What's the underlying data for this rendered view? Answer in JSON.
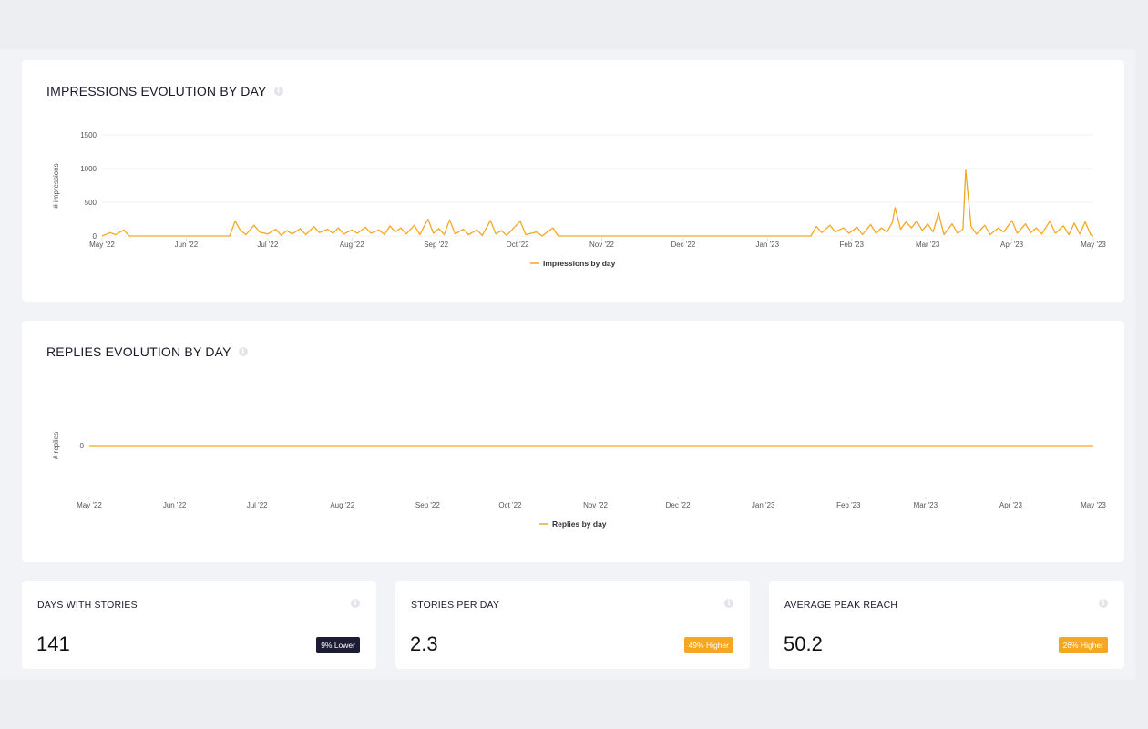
{
  "impressions_card": {
    "title": "IMPRESSIONS EVOLUTION BY DAY",
    "info_icon": "info-icon",
    "chart_data": {
      "type": "line",
      "ylabel": "# impressions",
      "ylim": [
        0,
        1500
      ],
      "yticks": [
        0,
        500,
        1000,
        1500
      ],
      "xlim": [
        "2022-05-01",
        "2023-05-01"
      ],
      "xticks": [
        {
          "date": "2022-05-01",
          "label": "May '22"
        },
        {
          "date": "2022-06-01",
          "label": "Jun '22"
        },
        {
          "date": "2022-07-01",
          "label": "Jul '22"
        },
        {
          "date": "2022-08-01",
          "label": "Aug '22"
        },
        {
          "date": "2022-09-01",
          "label": "Sep '22"
        },
        {
          "date": "2022-10-01",
          "label": "Oct '22"
        },
        {
          "date": "2022-11-01",
          "label": "Nov '22"
        },
        {
          "date": "2022-12-01",
          "label": "Dec '22"
        },
        {
          "date": "2023-01-01",
          "label": "Jan '23"
        },
        {
          "date": "2023-02-01",
          "label": "Feb '23"
        },
        {
          "date": "2023-03-01",
          "label": "Mar '23"
        },
        {
          "date": "2023-04-01",
          "label": "Apr '23"
        },
        {
          "date": "2023-05-01",
          "label": "May '23"
        }
      ],
      "legend_position": "bottom-center",
      "color": "#f5a623",
      "series": [
        {
          "name": "Impressions by day",
          "points": [
            [
              "2022-05-01",
              0
            ],
            [
              "2022-05-04",
              50
            ],
            [
              "2022-05-06",
              20
            ],
            [
              "2022-05-09",
              90
            ],
            [
              "2022-05-11",
              0
            ],
            [
              "2022-06-17",
              0
            ],
            [
              "2022-06-19",
              220
            ],
            [
              "2022-06-21",
              80
            ],
            [
              "2022-06-23",
              20
            ],
            [
              "2022-06-26",
              160
            ],
            [
              "2022-06-28",
              60
            ],
            [
              "2022-07-01",
              30
            ],
            [
              "2022-07-04",
              100
            ],
            [
              "2022-07-06",
              10
            ],
            [
              "2022-07-08",
              80
            ],
            [
              "2022-07-10",
              30
            ],
            [
              "2022-07-13",
              110
            ],
            [
              "2022-07-15",
              20
            ],
            [
              "2022-07-18",
              140
            ],
            [
              "2022-07-20",
              50
            ],
            [
              "2022-07-23",
              100
            ],
            [
              "2022-07-25",
              40
            ],
            [
              "2022-07-27",
              120
            ],
            [
              "2022-07-29",
              30
            ],
            [
              "2022-08-01",
              90
            ],
            [
              "2022-08-03",
              40
            ],
            [
              "2022-08-06",
              130
            ],
            [
              "2022-08-08",
              40
            ],
            [
              "2022-08-11",
              90
            ],
            [
              "2022-08-13",
              20
            ],
            [
              "2022-08-15",
              150
            ],
            [
              "2022-08-17",
              60
            ],
            [
              "2022-08-19",
              120
            ],
            [
              "2022-08-21",
              30
            ],
            [
              "2022-08-24",
              160
            ],
            [
              "2022-08-26",
              20
            ],
            [
              "2022-08-29",
              250
            ],
            [
              "2022-08-31",
              40
            ],
            [
              "2022-09-02",
              110
            ],
            [
              "2022-09-04",
              20
            ],
            [
              "2022-09-06",
              240
            ],
            [
              "2022-09-08",
              30
            ],
            [
              "2022-09-11",
              100
            ],
            [
              "2022-09-13",
              20
            ],
            [
              "2022-09-16",
              90
            ],
            [
              "2022-09-18",
              10
            ],
            [
              "2022-09-21",
              230
            ],
            [
              "2022-09-23",
              30
            ],
            [
              "2022-09-25",
              80
            ],
            [
              "2022-09-27",
              10
            ],
            [
              "2022-10-02",
              220
            ],
            [
              "2022-10-04",
              20
            ],
            [
              "2022-10-08",
              60
            ],
            [
              "2022-10-10",
              0
            ],
            [
              "2022-10-14",
              120
            ],
            [
              "2022-10-16",
              0
            ],
            [
              "2023-01-17",
              0
            ],
            [
              "2023-01-19",
              140
            ],
            [
              "2023-01-21",
              50
            ],
            [
              "2023-01-24",
              160
            ],
            [
              "2023-01-26",
              60
            ],
            [
              "2023-01-29",
              120
            ],
            [
              "2023-01-31",
              40
            ],
            [
              "2023-02-03",
              130
            ],
            [
              "2023-02-05",
              20
            ],
            [
              "2023-02-08",
              170
            ],
            [
              "2023-02-10",
              40
            ],
            [
              "2023-02-12",
              120
            ],
            [
              "2023-02-14",
              60
            ],
            [
              "2023-02-16",
              200
            ],
            [
              "2023-02-17",
              420
            ],
            [
              "2023-02-19",
              100
            ],
            [
              "2023-02-21",
              210
            ],
            [
              "2023-02-23",
              120
            ],
            [
              "2023-02-25",
              220
            ],
            [
              "2023-02-27",
              80
            ],
            [
              "2023-03-01",
              180
            ],
            [
              "2023-03-03",
              60
            ],
            [
              "2023-03-05",
              340
            ],
            [
              "2023-03-07",
              20
            ],
            [
              "2023-03-10",
              180
            ],
            [
              "2023-03-12",
              40
            ],
            [
              "2023-03-14",
              100
            ],
            [
              "2023-03-15",
              980
            ],
            [
              "2023-03-17",
              140
            ],
            [
              "2023-03-19",
              30
            ],
            [
              "2023-03-22",
              160
            ],
            [
              "2023-03-24",
              20
            ],
            [
              "2023-03-27",
              120
            ],
            [
              "2023-03-29",
              60
            ],
            [
              "2023-04-01",
              230
            ],
            [
              "2023-04-03",
              40
            ],
            [
              "2023-04-06",
              180
            ],
            [
              "2023-04-08",
              50
            ],
            [
              "2023-04-10",
              120
            ],
            [
              "2023-04-12",
              30
            ],
            [
              "2023-04-15",
              220
            ],
            [
              "2023-04-17",
              40
            ],
            [
              "2023-04-20",
              150
            ],
            [
              "2023-04-22",
              20
            ],
            [
              "2023-04-24",
              190
            ],
            [
              "2023-04-26",
              30
            ],
            [
              "2023-04-28",
              210
            ],
            [
              "2023-04-30",
              20
            ],
            [
              "2023-05-01",
              0
            ]
          ]
        }
      ]
    }
  },
  "replies_card": {
    "title": "REPLIES EVOLUTION BY DAY",
    "info_icon": "info-icon",
    "chart_data": {
      "type": "line",
      "ylabel": "# replies",
      "yticks": [
        0
      ],
      "xlim": [
        "2022-05-01",
        "2023-05-01"
      ],
      "xticks": [
        {
          "date": "2022-05-01",
          "label": "May '22"
        },
        {
          "date": "2022-06-01",
          "label": "Jun '22"
        },
        {
          "date": "2022-07-01",
          "label": "Jul '22"
        },
        {
          "date": "2022-08-01",
          "label": "Aug '22"
        },
        {
          "date": "2022-09-01",
          "label": "Sep '22"
        },
        {
          "date": "2022-10-01",
          "label": "Oct '22"
        },
        {
          "date": "2022-11-01",
          "label": "Nov '22"
        },
        {
          "date": "2022-12-01",
          "label": "Dec '22"
        },
        {
          "date": "2023-01-01",
          "label": "Jan '23"
        },
        {
          "date": "2023-02-01",
          "label": "Feb '23"
        },
        {
          "date": "2023-03-01",
          "label": "Mar '23"
        },
        {
          "date": "2023-04-01",
          "label": "Apr '23"
        },
        {
          "date": "2023-05-01",
          "label": "May '23"
        }
      ],
      "legend_position": "bottom-center",
      "color": "#f5a623",
      "series": [
        {
          "name": "Replies by day",
          "points": [
            [
              "2022-05-01",
              0
            ],
            [
              "2023-05-01",
              0
            ]
          ]
        }
      ]
    }
  },
  "stats": [
    {
      "title": "DAYS WITH STORIES",
      "value": "141",
      "badge": "9% Lower",
      "badge_color": "#1c1c35"
    },
    {
      "title": "STORIES PER DAY",
      "value": "2.3",
      "badge": "49% Higher",
      "badge_color": "#f5a623"
    },
    {
      "title": "AVERAGE PEAK REACH",
      "value": "50.2",
      "badge": "26% Higher",
      "badge_color": "#f5a623"
    }
  ]
}
